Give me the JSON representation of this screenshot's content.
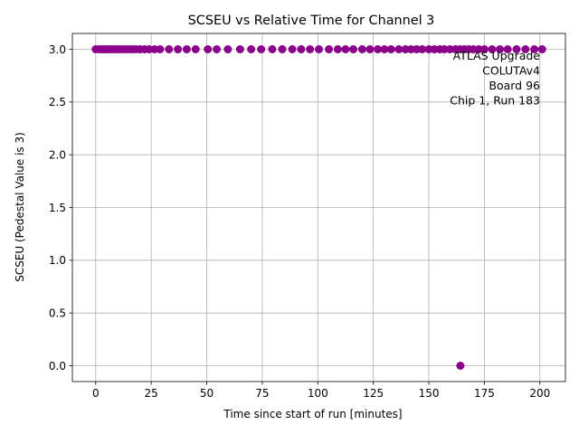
{
  "chart_data": {
    "type": "scatter",
    "title": "SCSEU vs Relative Time for Channel 3",
    "xlabel": "Time since start of run [minutes]",
    "ylabel": "SCSEU (Pedestal Value is 3)",
    "xlim": [
      -10.5,
      211.5
    ],
    "ylim": [
      -0.15,
      3.15
    ],
    "xticks": [
      0,
      25,
      50,
      75,
      100,
      125,
      150,
      175,
      200
    ],
    "xtick_labels": [
      "0",
      "25",
      "50",
      "75",
      "100",
      "125",
      "150",
      "175",
      "200"
    ],
    "yticks": [
      0.0,
      0.5,
      1.0,
      1.5,
      2.0,
      2.5,
      3.0
    ],
    "ytick_labels": [
      "0.0",
      "0.5",
      "1.0",
      "1.5",
      "2.0",
      "2.5",
      "3.0"
    ],
    "grid": true,
    "marker_color": "#8b008b",
    "annotation_lines": [
      "ATLAS Upgrade",
      "COLUTAv4",
      "Board 96",
      "Chip 1, Run 183"
    ],
    "series": [
      {
        "x": [
          0,
          1.5,
          2.7,
          3.8,
          5,
          6.2,
          7.4,
          8.8,
          10,
          11.3,
          12.6,
          14,
          15.4,
          16.8,
          18.3,
          20,
          22,
          24,
          26.5,
          29,
          33,
          37,
          41,
          45,
          50.5,
          54.5,
          59.5,
          65,
          70,
          74.5,
          79.5,
          84,
          88.5,
          92.5,
          96.5,
          100.5,
          105,
          109,
          112.5,
          116,
          120,
          123.5,
          127,
          130,
          133,
          136.5,
          139.5,
          142,
          144.5,
          147,
          150,
          152.5,
          155,
          157,
          159.5,
          162,
          164,
          166,
          168,
          170,
          172.5,
          175,
          178.5,
          182,
          185.5,
          189.5,
          193.5,
          197.5,
          201,
          164.2
        ],
        "y": [
          3,
          3,
          3,
          3,
          3,
          3,
          3,
          3,
          3,
          3,
          3,
          3,
          3,
          3,
          3,
          3,
          3,
          3,
          3,
          3,
          3,
          3,
          3,
          3,
          3,
          3,
          3,
          3,
          3,
          3,
          3,
          3,
          3,
          3,
          3,
          3,
          3,
          3,
          3,
          3,
          3,
          3,
          3,
          3,
          3,
          3,
          3,
          3,
          3,
          3,
          3,
          3,
          3,
          3,
          3,
          3,
          3,
          3,
          3,
          3,
          3,
          3,
          3,
          3,
          3,
          3,
          3,
          3,
          3,
          0
        ]
      }
    ]
  }
}
